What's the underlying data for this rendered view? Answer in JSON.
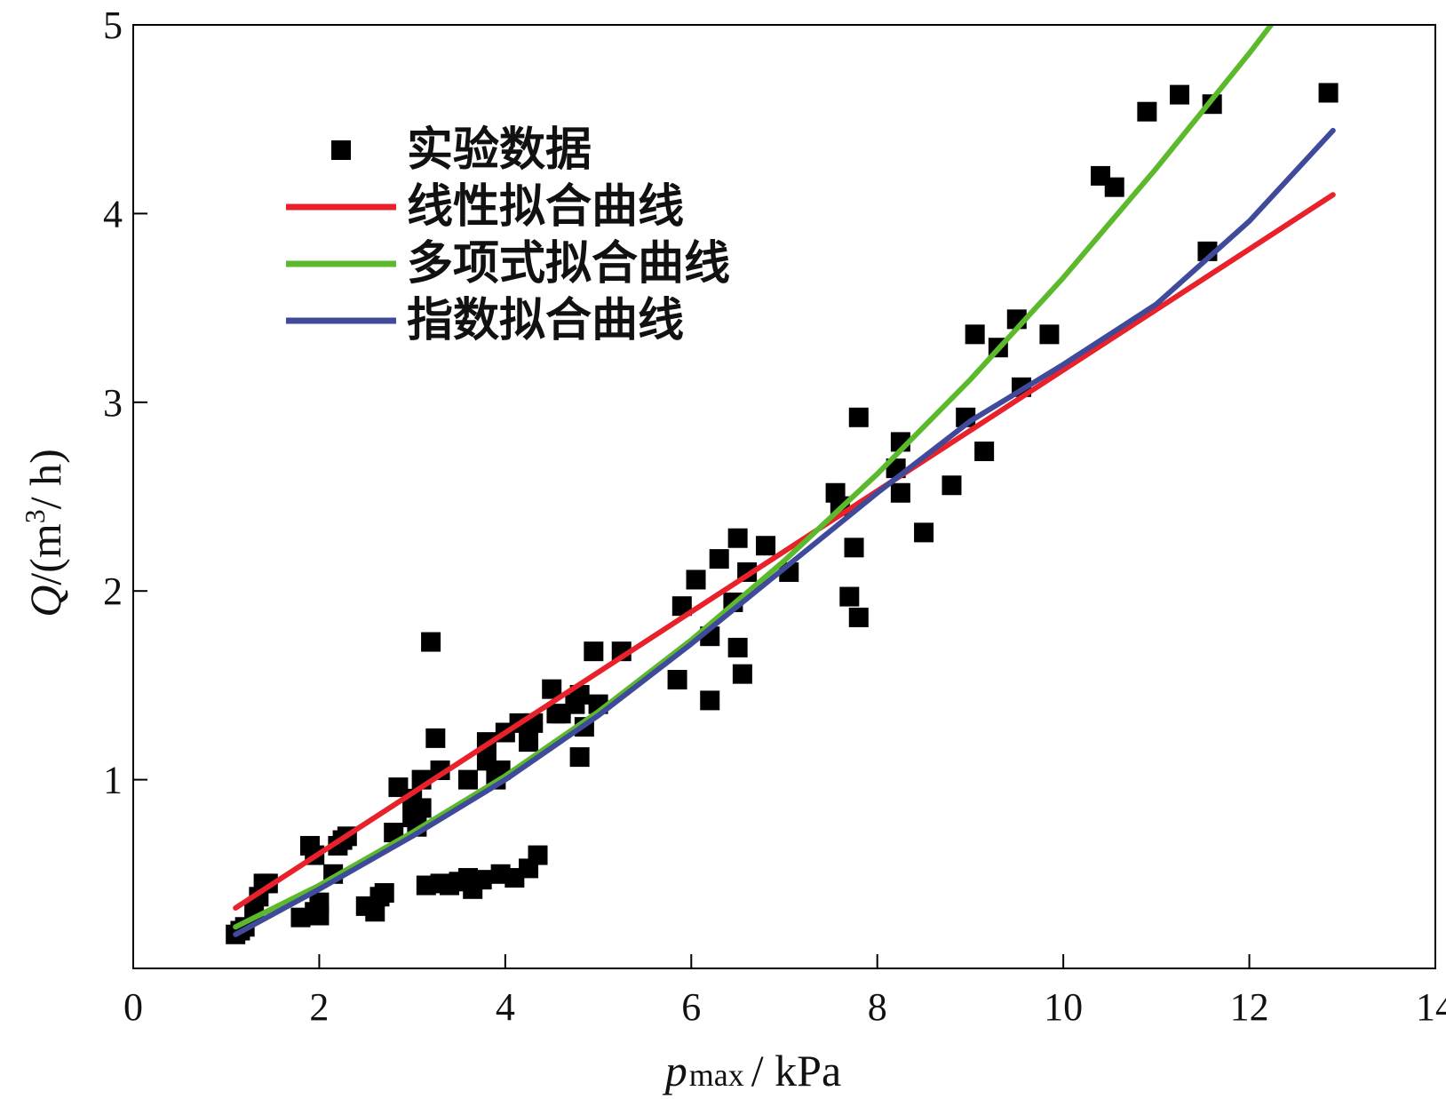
{
  "chart_data": {
    "type": "scatter",
    "title": "",
    "xlabel": {
      "var": "p",
      "sub": "max",
      "unit": "/ kPa"
    },
    "ylabel": {
      "var": "Q",
      "unit_pre": "/(m",
      "sup": "3",
      "unit_post": "/ h)"
    },
    "xlim": [
      0,
      14
    ],
    "ylim": [
      0,
      5
    ],
    "xticks": [
      0,
      2,
      4,
      6,
      8,
      10,
      12,
      14
    ],
    "yticks": [
      1,
      2,
      3,
      4,
      5
    ],
    "grid": false,
    "legend_position": "top-left",
    "series": [
      {
        "name": "实验数据",
        "kind": "scatter",
        "marker": "square",
        "color": "#000000",
        "points": [
          [
            1.1,
            0.18
          ],
          [
            1.15,
            0.2
          ],
          [
            1.2,
            0.22
          ],
          [
            1.3,
            0.3
          ],
          [
            1.35,
            0.38
          ],
          [
            1.4,
            0.45
          ],
          [
            1.45,
            0.45
          ],
          [
            1.8,
            0.27
          ],
          [
            1.9,
            0.65
          ],
          [
            1.95,
            0.6
          ],
          [
            1.95,
            0.3
          ],
          [
            2.0,
            0.28
          ],
          [
            2.0,
            0.35
          ],
          [
            2.15,
            0.5
          ],
          [
            2.2,
            0.65
          ],
          [
            2.25,
            0.68
          ],
          [
            2.3,
            0.7
          ],
          [
            2.5,
            0.33
          ],
          [
            2.6,
            0.3
          ],
          [
            2.65,
            0.38
          ],
          [
            2.7,
            0.4
          ],
          [
            2.8,
            0.72
          ],
          [
            2.85,
            0.96
          ],
          [
            3.0,
            0.9
          ],
          [
            3.0,
            0.8
          ],
          [
            3.05,
            0.75
          ],
          [
            3.1,
            0.85
          ],
          [
            3.1,
            1.0
          ],
          [
            3.15,
            0.44
          ],
          [
            3.2,
            1.73
          ],
          [
            3.25,
            1.22
          ],
          [
            3.3,
            0.45
          ],
          [
            3.3,
            1.05
          ],
          [
            3.4,
            0.44
          ],
          [
            3.5,
            0.46
          ],
          [
            3.6,
            0.48
          ],
          [
            3.6,
            1.0
          ],
          [
            3.65,
            0.42
          ],
          [
            3.75,
            0.47
          ],
          [
            3.8,
            1.2
          ],
          [
            3.8,
            1.1
          ],
          [
            3.9,
            1.0
          ],
          [
            3.95,
            1.05
          ],
          [
            3.95,
            0.5
          ],
          [
            4.0,
            1.25
          ],
          [
            4.1,
            0.48
          ],
          [
            4.15,
            1.3
          ],
          [
            4.25,
            1.2
          ],
          [
            4.25,
            0.53
          ],
          [
            4.3,
            1.3
          ],
          [
            4.35,
            0.6
          ],
          [
            4.5,
            1.48
          ],
          [
            4.55,
            1.35
          ],
          [
            4.6,
            1.35
          ],
          [
            4.75,
            1.4
          ],
          [
            4.8,
            1.12
          ],
          [
            4.8,
            1.45
          ],
          [
            4.85,
            1.28
          ],
          [
            4.95,
            1.68
          ],
          [
            5.0,
            1.4
          ],
          [
            5.25,
            1.68
          ],
          [
            5.85,
            1.53
          ],
          [
            5.9,
            1.92
          ],
          [
            6.05,
            2.06
          ],
          [
            6.2,
            1.42
          ],
          [
            6.2,
            1.76
          ],
          [
            6.3,
            2.17
          ],
          [
            6.45,
            1.94
          ],
          [
            6.5,
            2.28
          ],
          [
            6.5,
            1.7
          ],
          [
            6.55,
            1.56
          ],
          [
            6.6,
            2.1
          ],
          [
            6.8,
            2.24
          ],
          [
            7.05,
            2.1
          ],
          [
            7.55,
            2.52
          ],
          [
            7.6,
            2.45
          ],
          [
            7.7,
            1.97
          ],
          [
            7.75,
            2.23
          ],
          [
            7.8,
            2.92
          ],
          [
            7.8,
            1.86
          ],
          [
            8.2,
            2.65
          ],
          [
            8.25,
            2.79
          ],
          [
            8.25,
            2.52
          ],
          [
            8.5,
            2.31
          ],
          [
            8.8,
            2.56
          ],
          [
            8.95,
            2.92
          ],
          [
            9.05,
            3.36
          ],
          [
            9.15,
            2.74
          ],
          [
            9.3,
            3.29
          ],
          [
            9.5,
            3.44
          ],
          [
            9.55,
            3.08
          ],
          [
            9.85,
            3.36
          ],
          [
            10.4,
            4.2
          ],
          [
            10.55,
            4.14
          ],
          [
            10.9,
            4.54
          ],
          [
            11.25,
            4.63
          ],
          [
            11.55,
            3.8
          ],
          [
            11.6,
            4.58
          ],
          [
            12.85,
            4.64
          ]
        ]
      },
      {
        "name": "线性拟合曲线",
        "kind": "line",
        "color": "#e8212a",
        "points": [
          [
            1.1,
            0.32
          ],
          [
            12.9,
            4.1
          ]
        ]
      },
      {
        "name": "多项式拟合曲线",
        "kind": "line",
        "color": "#5db92c",
        "points": [
          [
            1.1,
            0.22
          ],
          [
            2,
            0.44
          ],
          [
            3,
            0.72
          ],
          [
            4,
            1.02
          ],
          [
            5,
            1.36
          ],
          [
            6,
            1.74
          ],
          [
            7,
            2.16
          ],
          [
            8,
            2.62
          ],
          [
            9,
            3.12
          ],
          [
            10,
            3.66
          ],
          [
            11,
            4.24
          ],
          [
            12,
            4.85
          ],
          [
            12.7,
            5.3
          ]
        ]
      },
      {
        "name": "指数拟合曲线",
        "kind": "line",
        "color": "#3f4a9a",
        "points": [
          [
            1.1,
            0.18
          ],
          [
            2,
            0.42
          ],
          [
            3,
            0.7
          ],
          [
            4,
            1.0
          ],
          [
            5,
            1.34
          ],
          [
            6,
            1.72
          ],
          [
            7,
            2.12
          ],
          [
            8,
            2.52
          ],
          [
            9,
            2.9
          ],
          [
            10,
            3.2
          ],
          [
            11,
            3.52
          ],
          [
            12,
            3.96
          ],
          [
            12.9,
            4.44
          ]
        ]
      }
    ]
  }
}
